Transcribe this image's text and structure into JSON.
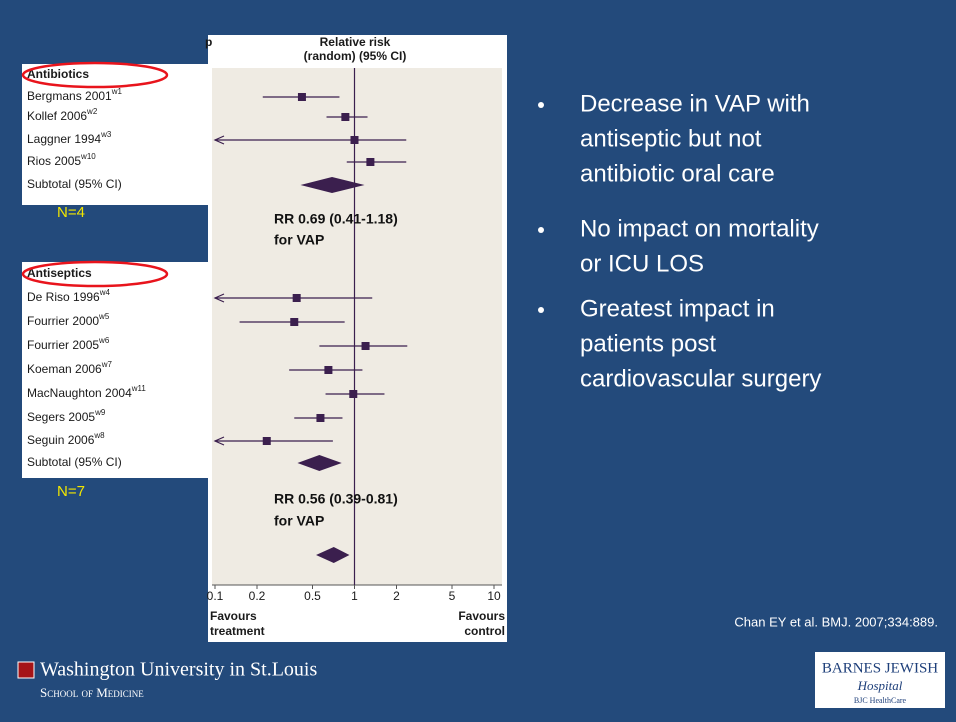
{
  "slide": {
    "bullets": [
      [
        "Decrease in VAP with",
        "antiseptic but not",
        "antibiotic oral care"
      ],
      [
        "No impact on mortality",
        "or ICU LOS"
      ],
      [
        "Greatest impact in",
        "patients post",
        "cardiovascular surgery"
      ]
    ],
    "citation": "Chan EY et al. BMJ. 2007;334:889.",
    "logo_left": [
      "Washington University in St.Louis",
      "School of Medicine"
    ],
    "logo_right": [
      "BARNES JEWISH",
      "Hospital",
      "BJC HealthCare"
    ]
  },
  "chart_data": {
    "type": "forest",
    "header_fragment": "p",
    "title": "Relative risk",
    "subtitle": "(random) (95% CI)",
    "xscale": "log",
    "xlim": [
      0.1,
      10
    ],
    "xticks": [
      0.1,
      0.2,
      0.5,
      1,
      2,
      5,
      10
    ],
    "reference_line": 1,
    "favours_left": [
      "Favours",
      "treatment"
    ],
    "favours_right": [
      "Favours",
      "control"
    ],
    "color": "#3b1f4e",
    "groups": [
      {
        "name": "Antibiotics",
        "n_label": "N=4",
        "studies": [
          {
            "name": "Bergmans 2001",
            "ref": "w1",
            "values": [
              0.42,
              0.22,
              0.78
            ]
          },
          {
            "name": "Kollef 2006",
            "ref": "w2",
            "values": [
              0.86,
              0.63,
              1.24
            ]
          },
          {
            "name": "Laggner 1994",
            "ref": "w3",
            "values": [
              1.0,
              0.05,
              2.35
            ]
          },
          {
            "name": "Rios 2005",
            "ref": "w10",
            "values": [
              1.3,
              0.88,
              2.35
            ]
          }
        ],
        "subtotal": {
          "name": "Subtotal (95% CI)",
          "values": [
            0.69,
            0.41,
            1.18
          ],
          "annotation": [
            "RR 0.69 (0.41-1.18)",
            "for VAP"
          ]
        }
      },
      {
        "name": "Antiseptics",
        "n_label": "N=7",
        "studies": [
          {
            "name": "De Riso 1996",
            "ref": "w4",
            "values": [
              0.385,
              0.05,
              1.34
            ]
          },
          {
            "name": "Fourrier 2000",
            "ref": "w5",
            "values": [
              0.37,
              0.15,
              0.85
            ]
          },
          {
            "name": "Fourrier 2005",
            "ref": "w6",
            "values": [
              1.2,
              0.56,
              2.39
            ]
          },
          {
            "name": "Koeman 2006",
            "ref": "w7",
            "values": [
              0.65,
              0.34,
              1.14
            ]
          },
          {
            "name": "MacNaughton 2004",
            "ref": "w11",
            "values": [
              0.98,
              0.62,
              1.64
            ]
          },
          {
            "name": "Segers 2005",
            "ref": "w9",
            "values": [
              0.57,
              0.37,
              0.82
            ]
          },
          {
            "name": "Seguin 2006",
            "ref": "w8",
            "values": [
              0.235,
              0.05,
              0.7
            ]
          }
        ],
        "subtotal": {
          "name": "Subtotal (95% CI)",
          "values": [
            0.56,
            0.39,
            0.81
          ],
          "annotation": [
            "RR 0.56 (0.39-0.81)",
            "for VAP"
          ]
        }
      }
    ],
    "overall": {
      "values": [
        0.71,
        0.53,
        0.92
      ]
    }
  }
}
